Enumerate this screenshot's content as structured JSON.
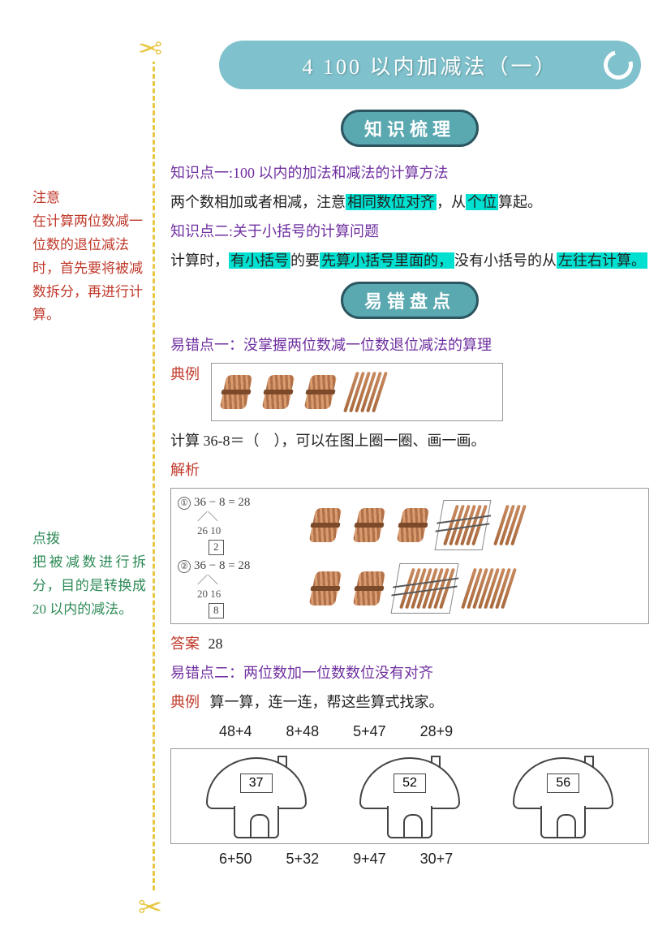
{
  "colors": {
    "highlight": "#00e0d0",
    "heading_purple": "#7030a0",
    "note_red": "#c0392b",
    "note_green": "#2e8b57",
    "banner_bg": "#7fc1cc",
    "pill_bg": "#5aa8b0",
    "pill_border": "#2b5560",
    "scissor": "#e6c843",
    "text": "#222222",
    "page_bg": "#ffffff"
  },
  "title": "4 100 以内加减法（一）",
  "section1_pill": "知识梳理",
  "section2_pill": "易错盘点",
  "left_note1_title": "注意",
  "left_note1_body": "在计算两位数减一位数的退位减法时，首先要将被减数拆分，再进行计算。",
  "left_note2_title": "点拨",
  "left_note2_body": "把被减数进行拆分，目的是转换成 20 以内的减法。",
  "kp1_heading": "知识点一:100 以内的加法和减法的计算方法",
  "kp1_pre": "两个数相加或者相减，注意",
  "kp1_hl1": "相同数位对齐",
  "kp1_mid": "，从",
  "kp1_hl2": "个位",
  "kp1_post": "算起。",
  "kp2_heading": "知识点二:关于小括号的计算问题",
  "kp2_pre": "计算时，",
  "kp2_hl1": "有小括号",
  "kp2_mid1": "的要",
  "kp2_hl2": "先算小括号里面的，",
  "kp2_mid2": "没有小括号",
  "kp2_mid3": "的从",
  "kp2_hl3": "左往右计算。",
  "err1_heading": "易错点一：没掌握两位数减一位数退位减法的算理",
  "label_dianli": "典例",
  "label_jiexi": "解析",
  "label_daan": "答案",
  "err1_example_sticks": {
    "bundles": 3,
    "loose": 6
  },
  "err1_question": "计算 36-8＝（　），可以在图上圈一圈、画一画。",
  "err1_solution": {
    "rows": [
      {
        "idx": "①",
        "eq": "36 − 8 = 28",
        "split": "26 10",
        "boxnum": "2",
        "bundles": 3,
        "crossed_loose_group": 6,
        "extra_loose": 4
      },
      {
        "idx": "②",
        "eq": "36 − 8 = 28",
        "split": "20 16",
        "boxnum": "8",
        "bundles": 2,
        "crossed_loose_group": 8,
        "extra_loose": 8
      }
    ]
  },
  "err1_answer": "28",
  "err2_heading": "易错点二：两位数加一位数数位没有对齐",
  "err2_example_text": "算一算，连一连，帮这些算式找家。",
  "err2_top_eqs": [
    "48+4",
    "8+48",
    "5+47",
    "28+9"
  ],
  "err2_houses": [
    "37",
    "52",
    "56"
  ],
  "err2_bottom_eqs": [
    "6+50",
    "5+32",
    "9+47",
    "30+7"
  ]
}
